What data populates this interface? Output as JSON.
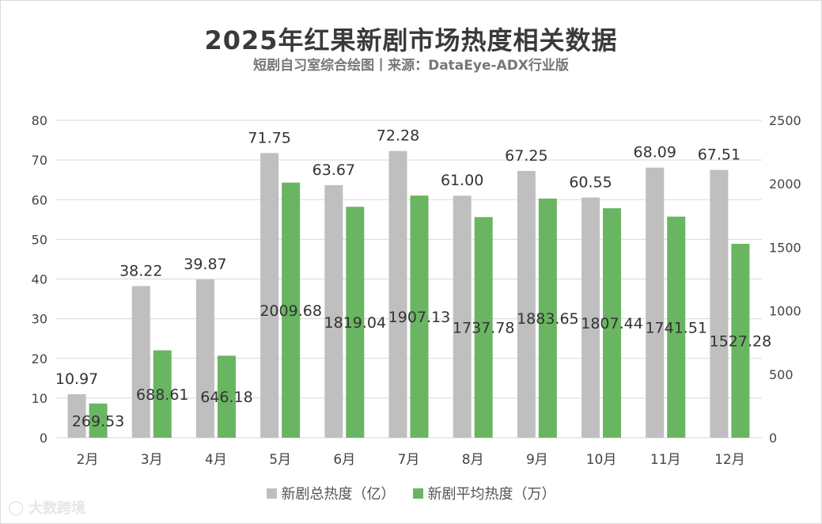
{
  "header": {
    "title": "2025年红果新剧市场热度相关数据",
    "subtitle": "短剧自习室综合绘图丨来源：DataEye-ADX行业版"
  },
  "chart_data": {
    "type": "bar",
    "title": "2025年红果新剧市场热度相关数据",
    "categories": [
      "2月",
      "3月",
      "4月",
      "5月",
      "6月",
      "7月",
      "8月",
      "9月",
      "10月",
      "11月",
      "12月"
    ],
    "series": [
      {
        "name": "新剧总热度（亿）",
        "axis": "left",
        "color": "#bfbfbf",
        "values": [
          10.97,
          38.22,
          39.87,
          71.75,
          63.67,
          72.28,
          61.0,
          67.25,
          60.55,
          68.09,
          67.51
        ],
        "labels": [
          "10.97",
          "38.22",
          "39.87",
          "71.75",
          "63.67",
          "72.28",
          "61.00",
          "67.25",
          "60.55",
          "68.09",
          "67.51"
        ]
      },
      {
        "name": "新剧平均热度（万）",
        "axis": "right",
        "color": "#6ab562",
        "values": [
          269.53,
          688.61,
          646.18,
          2009.68,
          1819.04,
          1907.13,
          1737.78,
          1883.65,
          1807.44,
          1741.51,
          1527.28
        ],
        "labels": [
          "269.53",
          "688.61",
          "646.18",
          "2009.68",
          "1819.04",
          "1907.13",
          "1737.78",
          "1883.65",
          "1807.44",
          "1741.51",
          "1527.28"
        ]
      }
    ],
    "y_left": {
      "min": 0,
      "max": 80,
      "ticks": [
        "0",
        "10",
        "20",
        "30",
        "40",
        "50",
        "60",
        "70",
        "80"
      ]
    },
    "y_right": {
      "min": 0,
      "max": 2500,
      "ticks": [
        "0",
        "500",
        "1000",
        "1500",
        "2000",
        "2500"
      ]
    },
    "grid": true,
    "legend_position": "bottom"
  },
  "legend": {
    "items": [
      {
        "label": "新剧总热度（亿）",
        "color": "#bfbfbf"
      },
      {
        "label": "新剧平均热度（万）",
        "color": "#6ab562"
      }
    ]
  },
  "watermark": {
    "text": "大数跨境",
    "icon": "logo-icon"
  }
}
